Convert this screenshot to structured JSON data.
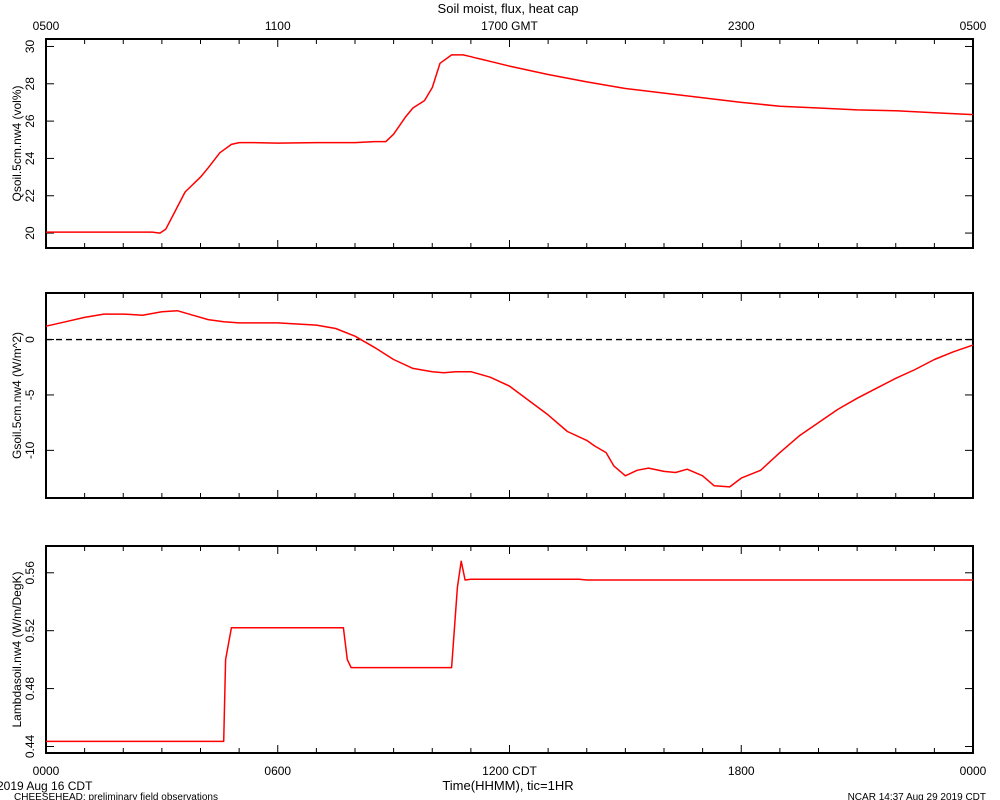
{
  "chart_data": [
    {
      "type": "line",
      "title": "Soil moist, flux, heat cap",
      "ylabel": "Qsoil.5cm.nw4 (vol%)",
      "ylim": [
        19.2,
        30.4
      ],
      "yticks": [
        20,
        22,
        24,
        26,
        28,
        30
      ],
      "ytick_labels": [
        "20",
        "22",
        "24",
        "26",
        "28",
        "30"
      ],
      "top_axis_label": "GMT",
      "top_ticks": [
        {
          "x": 0,
          "label": "0500"
        },
        {
          "x": 6,
          "label": "1100"
        },
        {
          "x": 12,
          "label": "1700 GMT"
        },
        {
          "x": 18,
          "label": "2300"
        },
        {
          "x": 24,
          "label": "0500"
        }
      ],
      "series": [
        {
          "color": "#ff0000",
          "x": [
            0,
            1,
            2,
            2.5,
            2.75,
            2.95,
            3.1,
            3.3,
            3.6,
            4.0,
            4.2,
            4.5,
            4.8,
            5.0,
            5.3,
            6,
            7,
            7.5,
            8,
            8.5,
            8.8,
            9.0,
            9.3,
            9.5,
            9.8,
            10.0,
            10.2,
            10.5,
            10.8,
            11.0,
            11.1,
            11.3,
            11.6,
            12,
            13,
            14,
            15,
            16,
            17,
            18,
            19,
            20,
            21,
            22,
            23,
            24
          ],
          "y": [
            20.05,
            20.05,
            20.05,
            20.05,
            20.05,
            20.0,
            20.2,
            21.0,
            22.2,
            23.0,
            23.5,
            24.3,
            24.75,
            24.85,
            24.85,
            24.82,
            24.85,
            24.85,
            24.85,
            24.9,
            24.9,
            25.3,
            26.2,
            26.7,
            27.1,
            27.8,
            29.1,
            29.55,
            29.55,
            29.45,
            29.4,
            29.3,
            29.15,
            28.95,
            28.5,
            28.1,
            27.75,
            27.5,
            27.25,
            27.0,
            26.8,
            26.7,
            26.6,
            26.55,
            26.45,
            26.35
          ]
        }
      ]
    },
    {
      "type": "line",
      "ylabel": "Gsoil.5cm.nw4 (W/m^2)",
      "ylim": [
        -14.3,
        4.2
      ],
      "yticks": [
        0,
        -5,
        -10
      ],
      "ytick_labels": [
        "0",
        "-5",
        "-10"
      ],
      "zero_line": true,
      "series": [
        {
          "color": "#ff0000",
          "x": [
            0,
            0.5,
            1,
            1.5,
            2,
            2.5,
            3,
            3.4,
            3.8,
            4.2,
            4.6,
            5,
            5.5,
            6,
            6.5,
            7,
            7.5,
            8,
            8.5,
            9,
            9.5,
            10,
            10.3,
            10.6,
            11,
            11.5,
            12,
            12.5,
            13,
            13.5,
            14,
            14.2,
            14.5,
            14.7,
            15,
            15.3,
            15.6,
            16,
            16.3,
            16.6,
            17,
            17.3,
            17.7,
            18,
            18.5,
            19,
            19.5,
            20,
            20.5,
            21,
            21.5,
            22,
            22.5,
            23,
            23.5,
            24
          ],
          "y": [
            1.2,
            1.6,
            2.0,
            2.3,
            2.3,
            2.2,
            2.5,
            2.6,
            2.2,
            1.8,
            1.6,
            1.5,
            1.5,
            1.5,
            1.4,
            1.3,
            1.0,
            0.3,
            -0.7,
            -1.8,
            -2.6,
            -2.9,
            -3.0,
            -2.9,
            -2.9,
            -3.4,
            -4.2,
            -5.5,
            -6.8,
            -8.3,
            -9.1,
            -9.6,
            -10.2,
            -11.4,
            -12.3,
            -11.8,
            -11.6,
            -11.9,
            -12.0,
            -11.7,
            -12.3,
            -13.2,
            -13.3,
            -12.5,
            -11.8,
            -10.2,
            -8.7,
            -7.5,
            -6.3,
            -5.3,
            -4.4,
            -3.5,
            -2.7,
            -1.8,
            -1.1,
            -0.5
          ]
        }
      ]
    },
    {
      "type": "line",
      "ylabel": "Lambdasoil.nw4 (W/m/DegK)",
      "ylim": [
        0.4355,
        0.5785
      ],
      "yticks": [
        0.44,
        0.48,
        0.52,
        0.56
      ],
      "ytick_labels": [
        "0.44",
        "0.48",
        "0.52",
        "0.56"
      ],
      "xlabel": "Time(HHMM), tic=1HR",
      "bottom_ticks": [
        {
          "x": 0,
          "label": "0000"
        },
        {
          "x": 6,
          "label": "0600"
        },
        {
          "x": 12,
          "label": "1200 CDT"
        },
        {
          "x": 18,
          "label": "1800"
        },
        {
          "x": 24,
          "label": "0000"
        }
      ],
      "series": [
        {
          "color": "#ff0000",
          "x": [
            0,
            4.6,
            4.65,
            4.8,
            5.0,
            7.7,
            7.8,
            7.9,
            10.5,
            10.65,
            10.75,
            10.85,
            11,
            13.8,
            14,
            24
          ],
          "y": [
            0.4435,
            0.4435,
            0.5,
            0.522,
            0.522,
            0.522,
            0.5,
            0.4945,
            0.4945,
            0.55,
            0.568,
            0.555,
            0.5555,
            0.5555,
            0.555,
            0.555
          ]
        }
      ]
    }
  ],
  "footer": {
    "date": "2019 Aug 16 CDT",
    "project": "CHEESEHEAD: preliminary field observations",
    "stamp": "NCAR 14:37 Aug 29 2019 CDT"
  }
}
